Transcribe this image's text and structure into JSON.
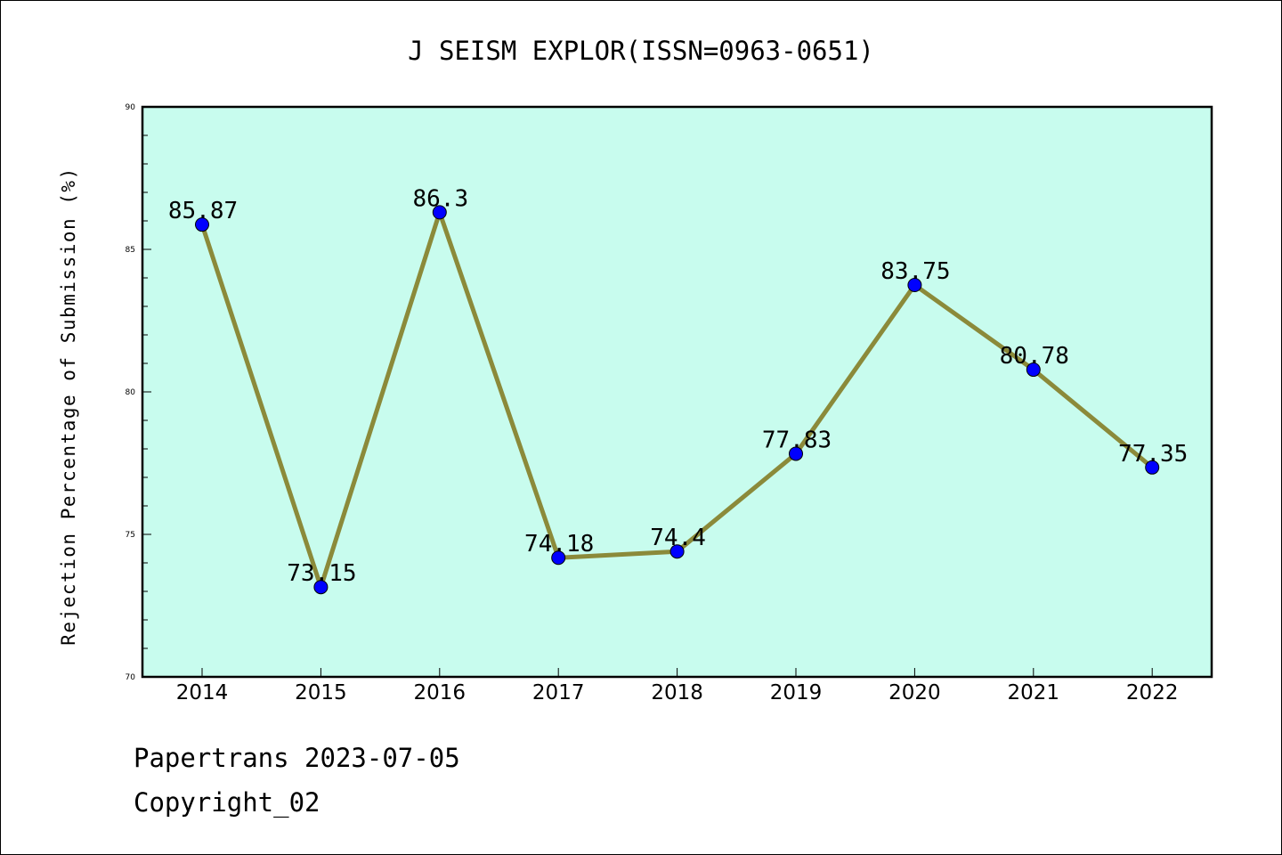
{
  "chart_data": {
    "type": "line",
    "title": "J SEISM EXPLOR(ISSN=0963-0651)",
    "xlabel": "",
    "ylabel": "Rejection Percentage of Submission (%)",
    "categories": [
      "2014",
      "2015",
      "2016",
      "2017",
      "2018",
      "2019",
      "2020",
      "2021",
      "2022"
    ],
    "series": [
      {
        "values": [
          85.87,
          73.15,
          86.3,
          74.18,
          74.4,
          77.83,
          83.75,
          80.78,
          77.35
        ],
        "data_labels": [
          "85.87",
          "73.15",
          "86.3",
          "74.18",
          "74.4",
          "77.83",
          "83.75",
          "80.78",
          "77.35"
        ]
      }
    ],
    "ylim": [
      70,
      90
    ],
    "yticks": [
      "70",
      "75",
      "80",
      "85",
      "90"
    ],
    "y_minor_step": 1,
    "grid": false,
    "colors": {
      "plot_background": "#c8fcee",
      "line": "#8b8a3a",
      "marker": "#0000ff"
    }
  },
  "footer": {
    "line1": "Papertrans 2023-07-05",
    "line2": "Copyright_02"
  }
}
